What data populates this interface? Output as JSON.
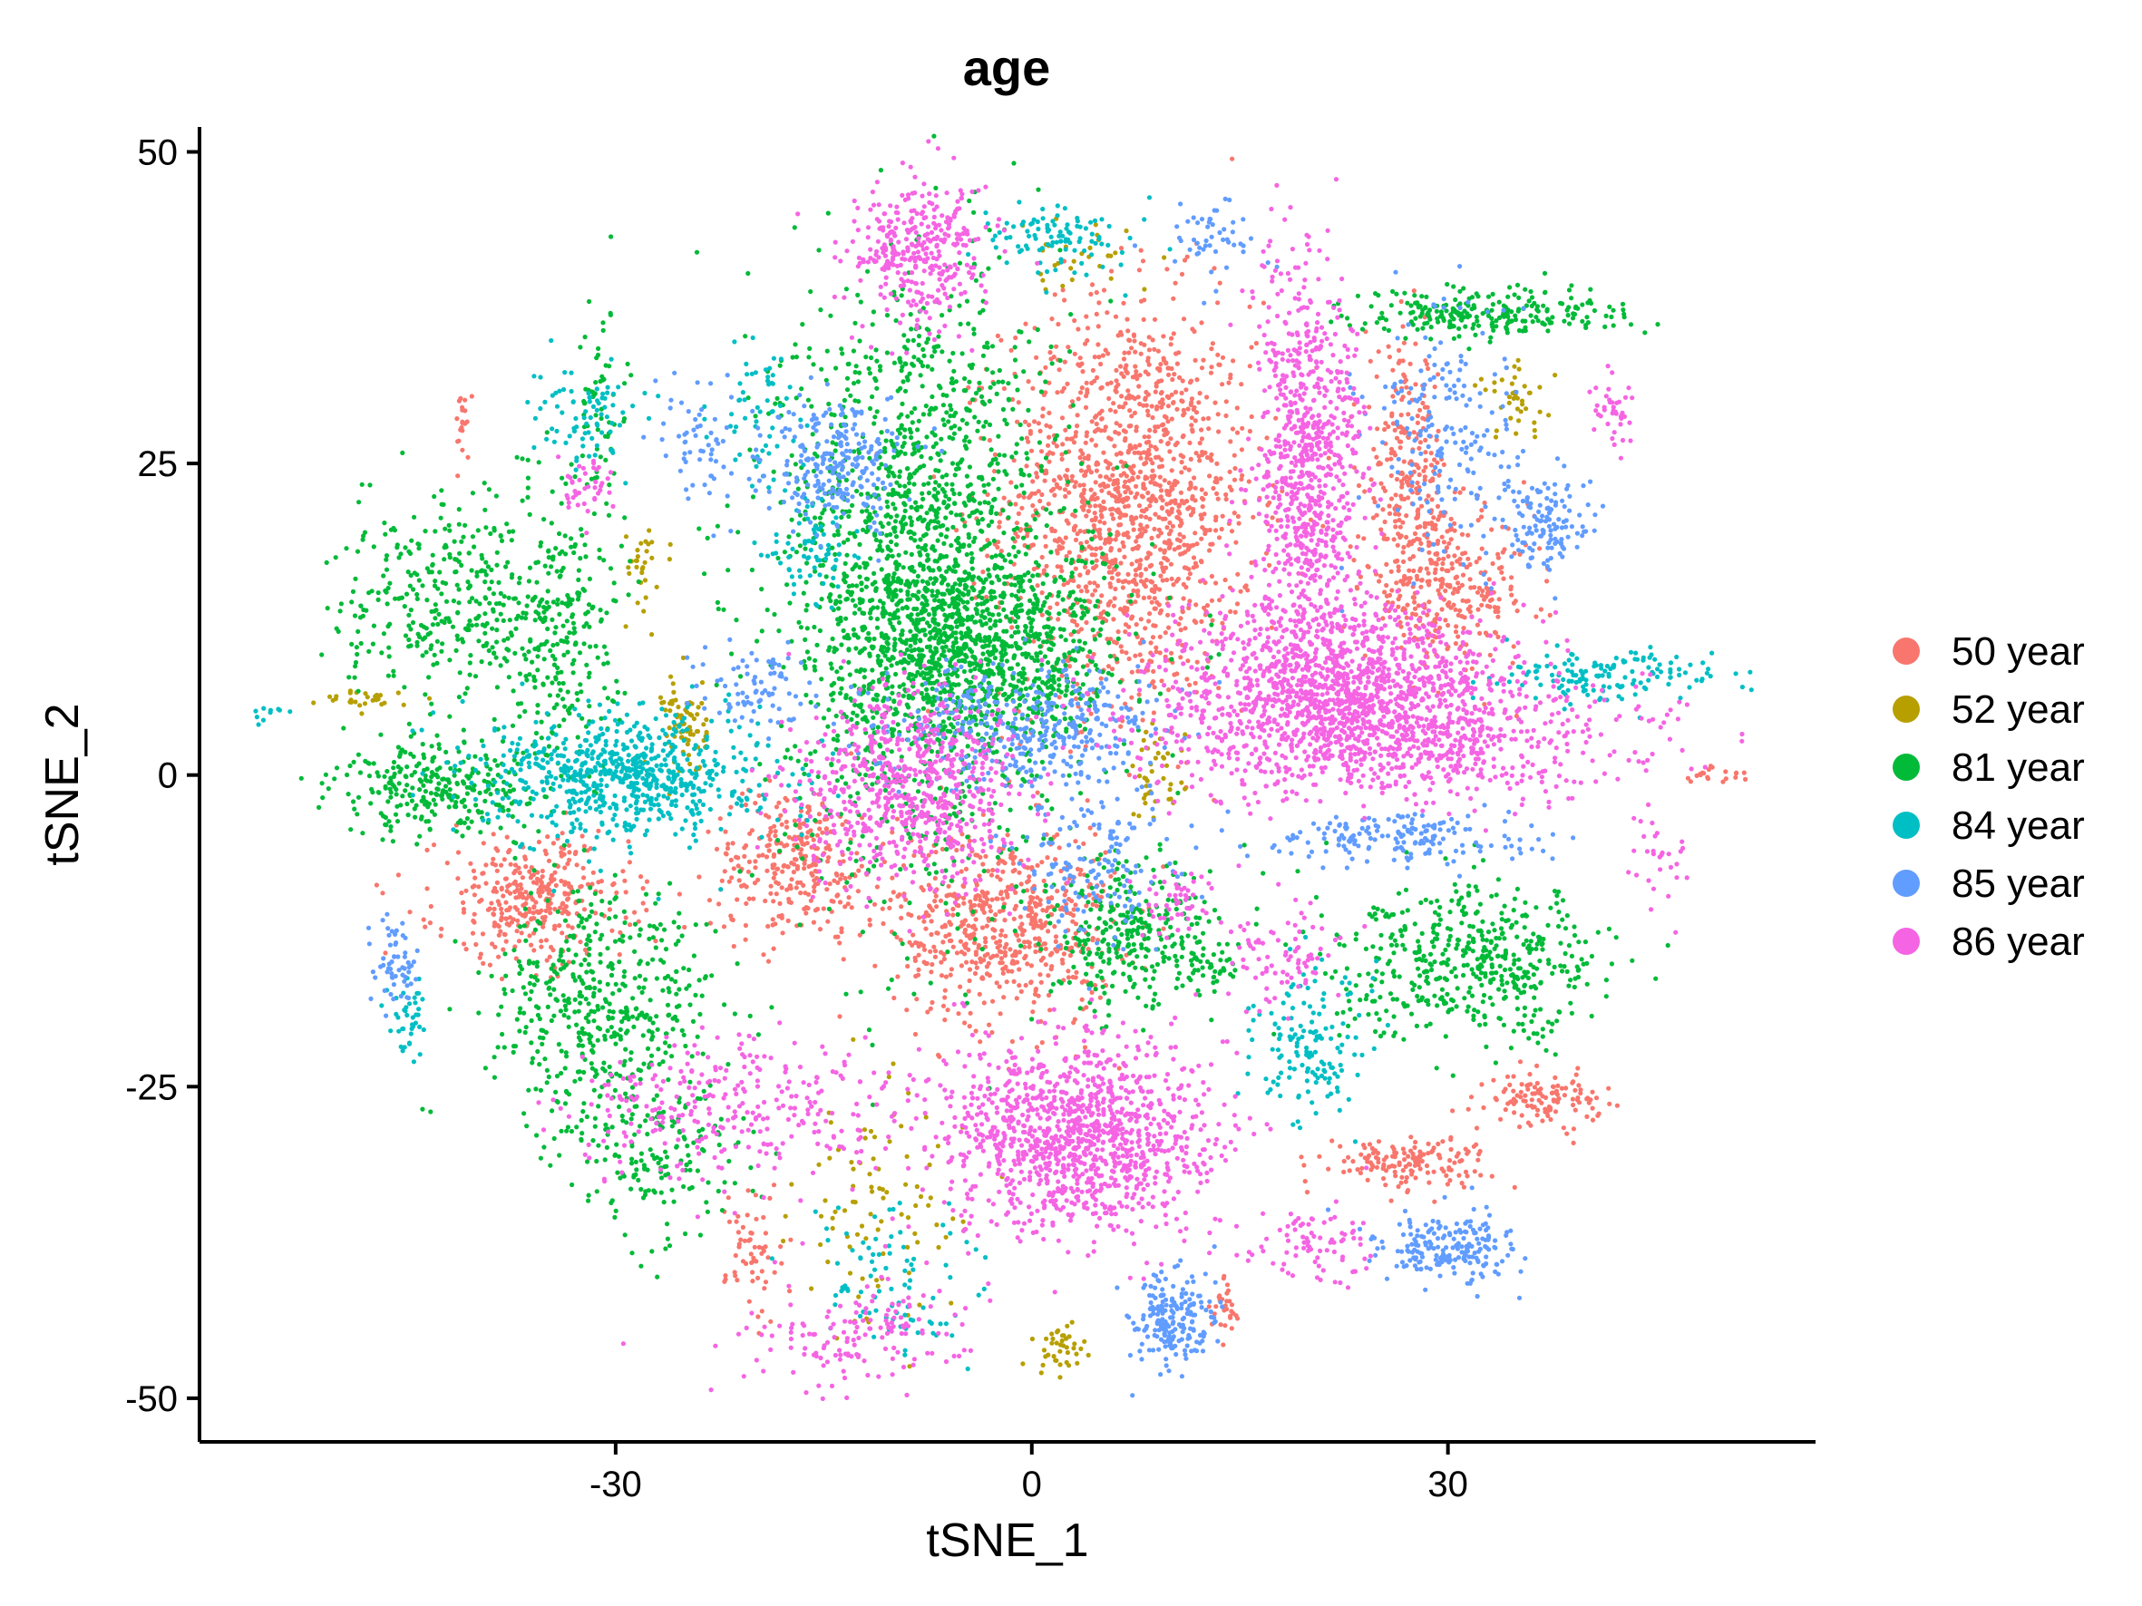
{
  "chart_data": {
    "type": "scatter",
    "title": "age",
    "xlabel": "tSNE_1",
    "ylabel": "tSNE_2",
    "xlim": [
      -60,
      56.5
    ],
    "ylim": [
      -53.5,
      52
    ],
    "xticks": [
      -30,
      0,
      30
    ],
    "yticks": [
      50,
      25,
      0,
      -25,
      -50
    ],
    "xtick_labels": [
      "-30",
      "0",
      "30"
    ],
    "ytick_labels": [
      "50",
      "25",
      "0",
      "-25",
      "-50"
    ],
    "grid": false,
    "legend_position": "right",
    "series": [
      {
        "name": "50 year",
        "color": "#F8766D",
        "clusters": [
          {
            "center": [
              7,
              22
            ],
            "spread": [
              4.5,
              8
            ],
            "n": 1400
          },
          {
            "center": [
              -2,
              -12
            ],
            "spread": [
              4,
              4
            ],
            "n": 600
          },
          {
            "center": [
              -17,
              -7
            ],
            "spread": [
              3,
              3
            ],
            "n": 300
          },
          {
            "center": [
              -36,
              -10
            ],
            "spread": [
              3.5,
              2.5
            ],
            "n": 350
          },
          {
            "center": [
              30,
              15
            ],
            "spread": [
              3,
              3
            ],
            "n": 300
          },
          {
            "center": [
              27,
              24
            ],
            "spread": [
              1.5,
              5
            ],
            "n": 250
          },
          {
            "center": [
              37,
              -26
            ],
            "spread": [
              2,
              1
            ],
            "n": 120
          },
          {
            "center": [
              27,
              -31
            ],
            "spread": [
              3,
              1
            ],
            "n": 150
          },
          {
            "center": [
              -20,
              -38
            ],
            "spread": [
              1,
              3
            ],
            "n": 60
          },
          {
            "center": [
              -41,
              28
            ],
            "spread": [
              0.3,
              1.5
            ],
            "n": 20
          },
          {
            "center": [
              49,
              0
            ],
            "spread": [
              1.2,
              0.3
            ],
            "n": 20
          },
          {
            "center": [
              14,
              -43
            ],
            "spread": [
              0.5,
              1.5
            ],
            "n": 30
          }
        ]
      },
      {
        "name": "52 year",
        "color": "#B79F00",
        "clusters": [
          {
            "center": [
              -25,
              4
            ],
            "spread": [
              0.8,
              2
            ],
            "n": 80
          },
          {
            "center": [
              -48,
              6
            ],
            "spread": [
              1.5,
              0.4
            ],
            "n": 30
          },
          {
            "center": [
              9,
              0
            ],
            "spread": [
              1,
              2
            ],
            "n": 40
          },
          {
            "center": [
              35,
              30
            ],
            "spread": [
              1.5,
              1.5
            ],
            "n": 40
          },
          {
            "center": [
              2,
              -46
            ],
            "spread": [
              1,
              1
            ],
            "n": 40
          },
          {
            "center": [
              -11,
              -35
            ],
            "spread": [
              3,
              5
            ],
            "n": 90
          },
          {
            "center": [
              3,
              41
            ],
            "spread": [
              2,
              1.5
            ],
            "n": 30
          },
          {
            "center": [
              -28,
              17
            ],
            "spread": [
              1,
              2
            ],
            "n": 30
          }
        ]
      },
      {
        "name": "81 year",
        "color": "#00BA38",
        "clusters": [
          {
            "center": [
              -8,
              16
            ],
            "spread": [
              5,
              12
            ],
            "n": 1800
          },
          {
            "center": [
              -3,
              10
            ],
            "spread": [
              5,
              4
            ],
            "n": 800
          },
          {
            "center": [
              -42,
              14
            ],
            "spread": [
              4,
              4
            ],
            "n": 350
          },
          {
            "center": [
              -34,
              12
            ],
            "spread": [
              2,
              6
            ],
            "n": 250
          },
          {
            "center": [
              -42,
              -1
            ],
            "spread": [
              4,
              2
            ],
            "n": 300
          },
          {
            "center": [
              -31,
              -19
            ],
            "spread": [
              4,
              5
            ],
            "n": 500
          },
          {
            "center": [
              7,
              -13
            ],
            "spread": [
              3,
              3
            ],
            "n": 300
          },
          {
            "center": [
              32,
              -15
            ],
            "spread": [
              5,
              3
            ],
            "n": 500
          },
          {
            "center": [
              33,
              37
            ],
            "spread": [
              5,
              1
            ],
            "n": 250
          },
          {
            "center": [
              -27,
              -31
            ],
            "spread": [
              3,
              3
            ],
            "n": 150
          },
          {
            "center": [
              13,
              -15
            ],
            "spread": [
              1,
              1
            ],
            "n": 40
          },
          {
            "center": [
              -31,
              30
            ],
            "spread": [
              1,
              5
            ],
            "n": 60
          }
        ]
      },
      {
        "name": "84 year",
        "color": "#00BFC4",
        "clusters": [
          {
            "center": [
              -29,
              0
            ],
            "spread": [
              5,
              2.5
            ],
            "n": 700
          },
          {
            "center": [
              -32,
              29
            ],
            "spread": [
              2,
              2
            ],
            "n": 80
          },
          {
            "center": [
              -16,
              18
            ],
            "spread": [
              1.5,
              2
            ],
            "n": 70
          },
          {
            "center": [
              2,
              43
            ],
            "spread": [
              3,
              1.5
            ],
            "n": 100
          },
          {
            "center": [
              42,
              8
            ],
            "spread": [
              4,
              1
            ],
            "n": 150
          },
          {
            "center": [
              20,
              -22
            ],
            "spread": [
              2,
              3
            ],
            "n": 150
          },
          {
            "center": [
              -45,
              -19
            ],
            "spread": [
              1,
              2
            ],
            "n": 40
          },
          {
            "center": [
              -55,
              5
            ],
            "spread": [
              0.6,
              0.6
            ],
            "n": 10
          },
          {
            "center": [
              -20,
              29
            ],
            "spread": [
              1.5,
              3
            ],
            "n": 60
          },
          {
            "center": [
              -10,
              -41
            ],
            "spread": [
              3,
              3
            ],
            "n": 90
          }
        ]
      },
      {
        "name": "85 year",
        "color": "#619CFF",
        "clusters": [
          {
            "center": [
              -14,
              25
            ],
            "spread": [
              2.5,
              2.5
            ],
            "n": 250
          },
          {
            "center": [
              30,
              27
            ],
            "spread": [
              3,
              5
            ],
            "n": 200
          },
          {
            "center": [
              37,
              20
            ],
            "spread": [
              1.5,
              2
            ],
            "n": 120
          },
          {
            "center": [
              0,
              4
            ],
            "spread": [
              5,
              2.5
            ],
            "n": 400
          },
          {
            "center": [
              27,
              -5
            ],
            "spread": [
              5,
              1
            ],
            "n": 180
          },
          {
            "center": [
              30,
              -38
            ],
            "spread": [
              2.5,
              1.5
            ],
            "n": 200
          },
          {
            "center": [
              10,
              -44
            ],
            "spread": [
              1.5,
              2
            ],
            "n": 200
          },
          {
            "center": [
              -46,
              -15
            ],
            "spread": [
              1,
              2
            ],
            "n": 60
          },
          {
            "center": [
              13,
              43
            ],
            "spread": [
              1.5,
              1.5
            ],
            "n": 50
          },
          {
            "center": [
              -24,
              26
            ],
            "spread": [
              2,
              3
            ],
            "n": 60
          },
          {
            "center": [
              -20,
              7
            ],
            "spread": [
              2,
              2
            ],
            "n": 80
          },
          {
            "center": [
              5,
              -8
            ],
            "spread": [
              3,
              3
            ],
            "n": 150
          }
        ]
      },
      {
        "name": "86 year",
        "color": "#F564E3",
        "clusters": [
          {
            "center": [
              -8,
              42
            ],
            "spread": [
              2.5,
              3
            ],
            "n": 350
          },
          {
            "center": [
              20,
              25
            ],
            "spread": [
              2,
              8
            ],
            "n": 800
          },
          {
            "center": [
              22,
              8
            ],
            "spread": [
              6,
              3
            ],
            "n": 1000
          },
          {
            "center": [
              26,
              3
            ],
            "spread": [
              9,
              2.5
            ],
            "n": 900
          },
          {
            "center": [
              -9,
              -1
            ],
            "spread": [
              4,
              4
            ],
            "n": 700
          },
          {
            "center": [
              3,
              -29
            ],
            "spread": [
              5,
              4
            ],
            "n": 1200
          },
          {
            "center": [
              -21,
              -27
            ],
            "spread": [
              6,
              3
            ],
            "n": 300
          },
          {
            "center": [
              20,
              -38
            ],
            "spread": [
              2,
              1.5
            ],
            "n": 80
          },
          {
            "center": [
              42,
              29
            ],
            "spread": [
              0.8,
              1.5
            ],
            "n": 40
          },
          {
            "center": [
              -13,
              -45
            ],
            "spread": [
              4,
              2
            ],
            "n": 150
          },
          {
            "center": [
              -32,
              23
            ],
            "spread": [
              1,
              1.5
            ],
            "n": 40
          },
          {
            "center": [
              10,
              -10
            ],
            "spread": [
              1.5,
              1.5
            ],
            "n": 50
          },
          {
            "center": [
              45,
              -6
            ],
            "spread": [
              1,
              2
            ],
            "n": 30
          },
          {
            "center": [
              18,
              -15
            ],
            "spread": [
              2,
              2
            ],
            "n": 80
          }
        ]
      }
    ]
  }
}
